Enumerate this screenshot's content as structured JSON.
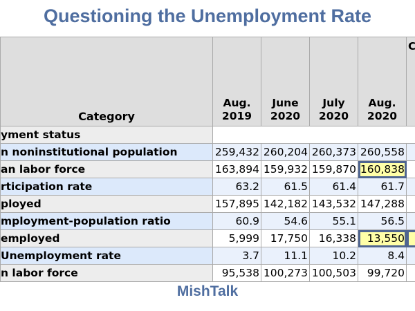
{
  "title": "Questioning the Unemployment Rate",
  "footer": "MishTalk",
  "table": {
    "category_header": "Category",
    "columns": [
      {
        "line1": "Aug.",
        "line2": "2019"
      },
      {
        "line1": "June",
        "line2": "2020"
      },
      {
        "line1": "July",
        "line2": "2020"
      },
      {
        "line1": "Aug.",
        "line2": "2020"
      }
    ],
    "extra_column_header": "C",
    "section_label": "yment status",
    "rows": [
      {
        "label": "n noninstitutional population",
        "values": [
          "259,432",
          "260,204",
          "260,373",
          "260,558"
        ]
      },
      {
        "label": "an labor force",
        "values": [
          "163,894",
          "159,932",
          "159,870",
          "160,838"
        ]
      },
      {
        "label": "rticipation rate",
        "values": [
          "63.2",
          "61.5",
          "61.4",
          "61.7"
        ]
      },
      {
        "label": "ployed",
        "values": [
          "157,895",
          "142,182",
          "143,532",
          "147,288"
        ]
      },
      {
        "label": "mployment-population ratio",
        "values": [
          "60.9",
          "54.6",
          "55.1",
          "56.5"
        ]
      },
      {
        "label": "employed",
        "values": [
          "5,999",
          "17,750",
          "16,338",
          "13,550"
        ]
      },
      {
        "label": "Unemployment rate",
        "values": [
          "3.7",
          "11.1",
          "10.2",
          "8.4"
        ]
      },
      {
        "label": "n labor force",
        "values": [
          "95,538",
          "100,273",
          "100,503",
          "99,720"
        ]
      }
    ],
    "highlight_color": "#ffffa8",
    "highlight_border": "#4f6590"
  }
}
